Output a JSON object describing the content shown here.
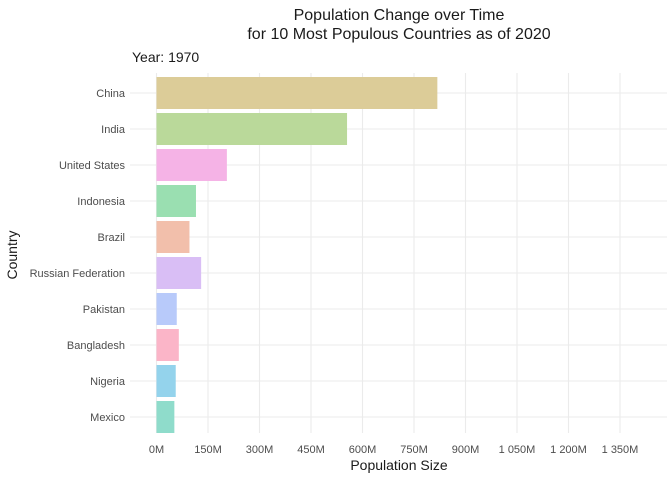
{
  "chart_data": {
    "type": "bar",
    "orientation": "horizontal",
    "title": [
      "Population Change over Time",
      "for 10 Most Populous Countries as of 2020"
    ],
    "subtitle": "Year: 1970",
    "xlabel": "Population Size",
    "ylabel": "Country",
    "xlim": [
      0,
      1450
    ],
    "x_ticks": [
      0,
      150,
      300,
      450,
      600,
      750,
      900,
      1050,
      1200,
      1350
    ],
    "x_tick_labels": [
      "0M",
      "150M",
      "300M",
      "450M",
      "600M",
      "750M",
      "900M",
      "1 050M",
      "1 200M",
      "1 350M"
    ],
    "unit": "M",
    "grid": true,
    "legend": "none",
    "categories": [
      "China",
      "India",
      "United States",
      "Indonesia",
      "Brazil",
      "Russian Federation",
      "Pakistan",
      "Bangladesh",
      "Nigeria",
      "Mexico"
    ],
    "values": [
      818,
      555,
      205,
      115,
      96,
      130,
      59,
      65,
      56,
      52
    ],
    "colors": [
      "#dccc98",
      "#bad99a",
      "#f5b3e6",
      "#9adfb1",
      "#f2bfab",
      "#d9bef5",
      "#b8cafa",
      "#fbb5c8",
      "#94d3ec",
      "#8fdccb"
    ]
  }
}
